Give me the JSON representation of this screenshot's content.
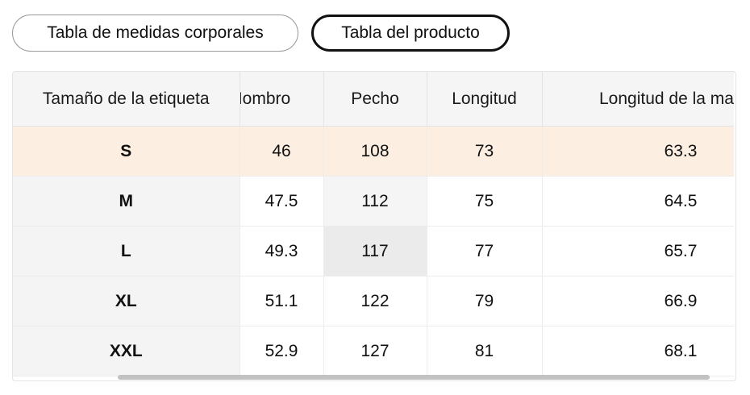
{
  "tabs": [
    {
      "label": "Tabla de medidas corporales",
      "active": false
    },
    {
      "label": "Tabla del producto",
      "active": true
    }
  ],
  "table": {
    "headers": [
      "Tamaño de la etiqueta",
      "Hombro",
      "Pecho",
      "Longitud",
      "Longitud de la manga"
    ],
    "rows": [
      {
        "size": "S",
        "values": [
          "46",
          "108",
          "73",
          "63.3"
        ]
      },
      {
        "size": "M",
        "values": [
          "47.5",
          "112",
          "75",
          "64.5"
        ]
      },
      {
        "size": "L",
        "values": [
          "49.3",
          "117",
          "77",
          "65.7"
        ]
      },
      {
        "size": "XL",
        "values": [
          "51.1",
          "122",
          "79",
          "66.9"
        ]
      },
      {
        "size": "XXL",
        "values": [
          "52.9",
          "127",
          "81",
          "68.1"
        ]
      }
    ],
    "highlighted_row": 0
  },
  "colors": {
    "highlight_row": "#fcefe2",
    "header_bg": "#f5f5f5",
    "active_tab_border": "#111111"
  }
}
